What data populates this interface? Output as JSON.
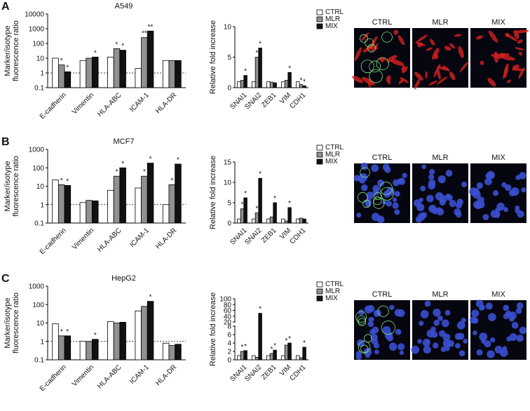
{
  "panels": [
    {
      "letter": "A",
      "images": [
        "CTRL",
        "MLR",
        "MIX"
      ]
    },
    {
      "letter": "B",
      "images": [
        "CTRL",
        "MLR",
        "MIX"
      ]
    },
    {
      "letter": "C",
      "images": [
        "CTRL",
        "MLR",
        "MIX"
      ]
    }
  ],
  "chart_data": [
    {
      "type": "bar",
      "title": "A549",
      "ylabel": [
        "Marker/isotype",
        "fluorescence ratio"
      ],
      "log": true,
      "ylim": [
        0.1,
        10000
      ],
      "yticks": [
        0.1,
        1,
        10,
        100,
        1000,
        10000
      ],
      "ref_line": 1,
      "categories": [
        "E-cadherin",
        "Vimentin",
        "HLA-ABC",
        "ICAM-1",
        "HLA-DR"
      ],
      "series": [
        {
          "name": "CTRL",
          "color": "#ffffff",
          "values": [
            10,
            7,
            12,
            2,
            7
          ],
          "annotations": [
            null,
            null,
            null,
            null,
            null
          ]
        },
        {
          "name": "MLR",
          "color": "#909090",
          "values": [
            3.5,
            10,
            45,
            250,
            7
          ],
          "annotations": [
            "*",
            null,
            "*",
            "**",
            null
          ]
        },
        {
          "name": "MIX",
          "color": "#111111",
          "values": [
            1.2,
            12,
            35,
            700,
            7
          ],
          "annotations": [
            "*",
            "*",
            "*",
            "**",
            null
          ]
        }
      ]
    },
    {
      "type": "bar",
      "ylabel": [
        "Relative fold increase"
      ],
      "log": false,
      "ylim": [
        0,
        10
      ],
      "yticks": [
        0,
        5,
        10
      ],
      "legend": true,
      "categories": [
        "SNAI1",
        "SNAI2",
        "ZEB1",
        "VIM",
        "CDH1"
      ],
      "series": [
        {
          "name": "CTRL",
          "color": "#ffffff",
          "values": [
            1,
            1,
            1,
            1,
            1
          ],
          "annotations": [
            null,
            null,
            null,
            null,
            null
          ]
        },
        {
          "name": "MLR",
          "color": "#909090",
          "values": [
            1.2,
            5,
            0.9,
            1.2,
            0.5
          ],
          "annotations": [
            null,
            "*",
            null,
            null,
            "*"
          ]
        },
        {
          "name": "MIX",
          "color": "#111111",
          "values": [
            2,
            6.5,
            0.8,
            2.5,
            0.3
          ],
          "annotations": [
            "*",
            "*",
            null,
            "*",
            "*"
          ]
        }
      ]
    },
    {
      "type": "bar",
      "title": "MCF7",
      "ylabel": [
        "Marker/isotype",
        "fluorescence ratio"
      ],
      "log": true,
      "ylim": [
        0.1,
        1000
      ],
      "yticks": [
        0.1,
        1,
        10,
        100,
        1000
      ],
      "ref_line": 1,
      "categories": [
        "E-cadherin",
        "Vimentin",
        "HLA-ABC",
        "ICAM-1",
        "HLA-DR"
      ],
      "series": [
        {
          "name": "CTRL",
          "color": "#ffffff",
          "values": [
            22,
            1.3,
            6,
            8,
            1
          ],
          "annotations": [
            null,
            null,
            null,
            null,
            null
          ]
        },
        {
          "name": "MLR",
          "color": "#909090",
          "values": [
            12,
            1.7,
            35,
            35,
            12
          ],
          "annotations": [
            "*",
            null,
            "*",
            "*",
            "*"
          ]
        },
        {
          "name": "MIX",
          "color": "#111111",
          "values": [
            11,
            1.6,
            100,
            180,
            160
          ],
          "annotations": [
            "*",
            null,
            "*",
            "*",
            "*"
          ]
        }
      ]
    },
    {
      "type": "bar",
      "ylabel": [
        "Relative fold increase"
      ],
      "log": false,
      "ylim": [
        0,
        15
      ],
      "yticks": [
        0,
        5,
        10,
        15
      ],
      "legend": true,
      "categories": [
        "SNAI1",
        "SNAI2",
        "ZEB1",
        "VIM",
        "CDH1"
      ],
      "series": [
        {
          "name": "CTRL",
          "color": "#ffffff",
          "values": [
            1,
            1,
            1,
            1,
            1
          ],
          "annotations": [
            null,
            null,
            null,
            null,
            null
          ]
        },
        {
          "name": "MLR",
          "color": "#909090",
          "values": [
            3.5,
            2.5,
            1.5,
            0.5,
            1.2
          ],
          "annotations": [
            "*",
            "*",
            null,
            null,
            null
          ]
        },
        {
          "name": "MIX",
          "color": "#111111",
          "values": [
            6.2,
            11,
            5,
            3.8,
            1
          ],
          "annotations": [
            "*",
            "*",
            "*",
            "*",
            null
          ]
        }
      ]
    },
    {
      "type": "bar",
      "title": "HepG2",
      "ylabel": [
        "Marker/isotype",
        "fluorescence ratio"
      ],
      "log": true,
      "ylim": [
        0.1,
        1000
      ],
      "yticks": [
        0.1,
        1,
        10,
        100,
        1000
      ],
      "ref_line": 1,
      "categories": [
        "E-cadherin",
        "Vimentin",
        "HLA-ABC",
        "ICAM-1",
        "HLA-DR"
      ],
      "series": [
        {
          "name": "CTRL",
          "color": "#ffffff",
          "values": [
            9,
            1,
            12,
            45,
            0.8
          ],
          "annotations": [
            null,
            null,
            null,
            null,
            null
          ]
        },
        {
          "name": "MLR",
          "color": "#909090",
          "values": [
            2,
            1,
            10,
            80,
            0.6
          ],
          "annotations": [
            "*",
            null,
            null,
            null,
            null
          ]
        },
        {
          "name": "MIX",
          "color": "#111111",
          "values": [
            2,
            1.3,
            11,
            150,
            0.7
          ],
          "annotations": [
            "*",
            "*",
            null,
            "*",
            null
          ]
        }
      ]
    },
    {
      "type": "bar",
      "ylabel": [
        "Relative fold increase"
      ],
      "log": false,
      "ylim": [
        0,
        100
      ],
      "axis_break": [
        8,
        20
      ],
      "yticks": [
        0,
        2,
        4,
        6,
        8,
        20,
        40,
        60,
        80,
        100
      ],
      "legend": true,
      "categories": [
        "SNAI1",
        "SNAI2",
        "ZEB1",
        "VIM",
        "CDH1"
      ],
      "series": [
        {
          "name": "CTRL",
          "color": "#ffffff",
          "values": [
            1,
            1,
            1,
            1,
            1
          ],
          "annotations": [
            null,
            null,
            null,
            null,
            null
          ]
        },
        {
          "name": "MLR",
          "color": "#909090",
          "values": [
            2,
            0.6,
            1.5,
            3.5,
            0.5
          ],
          "annotations": [
            "*",
            null,
            "*",
            "*",
            null
          ]
        },
        {
          "name": "MIX",
          "color": "#111111",
          "values": [
            2.2,
            50,
            2.3,
            4,
            3
          ],
          "annotations": [
            "*",
            "*",
            "*",
            "*",
            "*"
          ]
        }
      ]
    }
  ]
}
